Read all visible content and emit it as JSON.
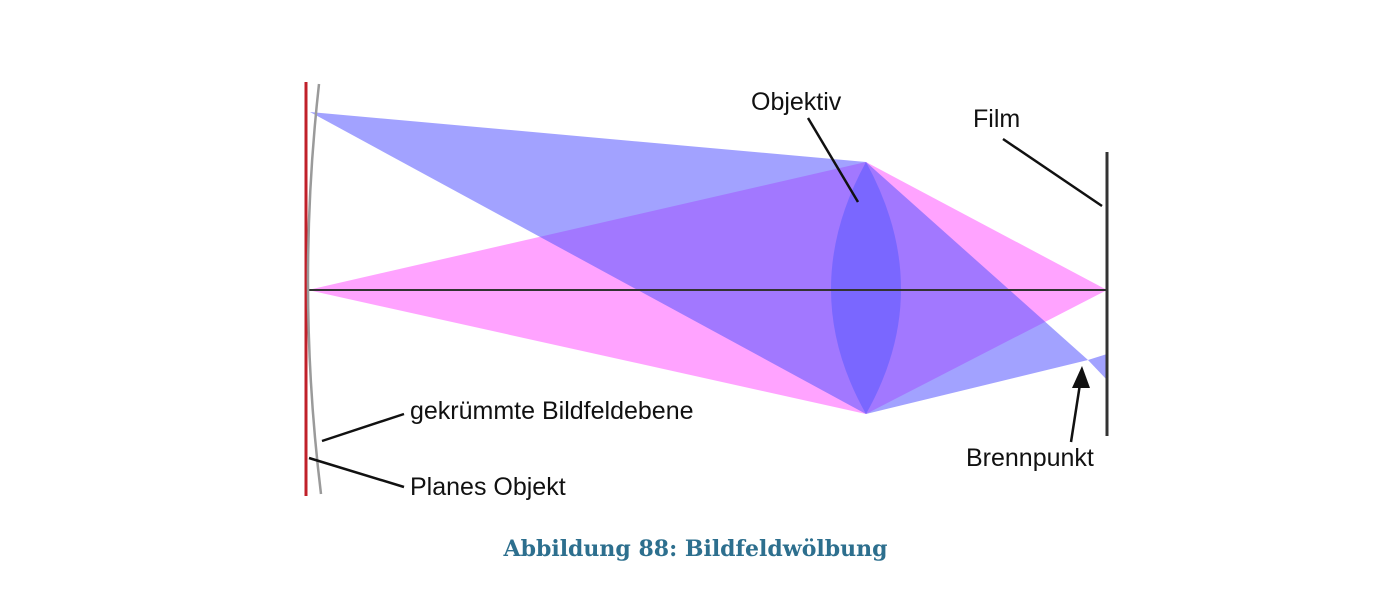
{
  "diagram": {
    "labels": {
      "objektiv": "Objektiv",
      "film": "Film",
      "curved_field": "gekrümmte Bildfeldebene",
      "plane_object": "Planes Objekt",
      "focal_point": "Brennpunkt"
    },
    "colors": {
      "object_plane": "#c0202a",
      "axis": "#333333",
      "magenta_beam": "#ff66ff",
      "blue_beam": "#5555ff",
      "lens": "#5a5aff",
      "film": "#333333",
      "curved_plane": "#9a9a9a"
    }
  },
  "caption": "Abbildung 88: Bildfeldwölbung"
}
